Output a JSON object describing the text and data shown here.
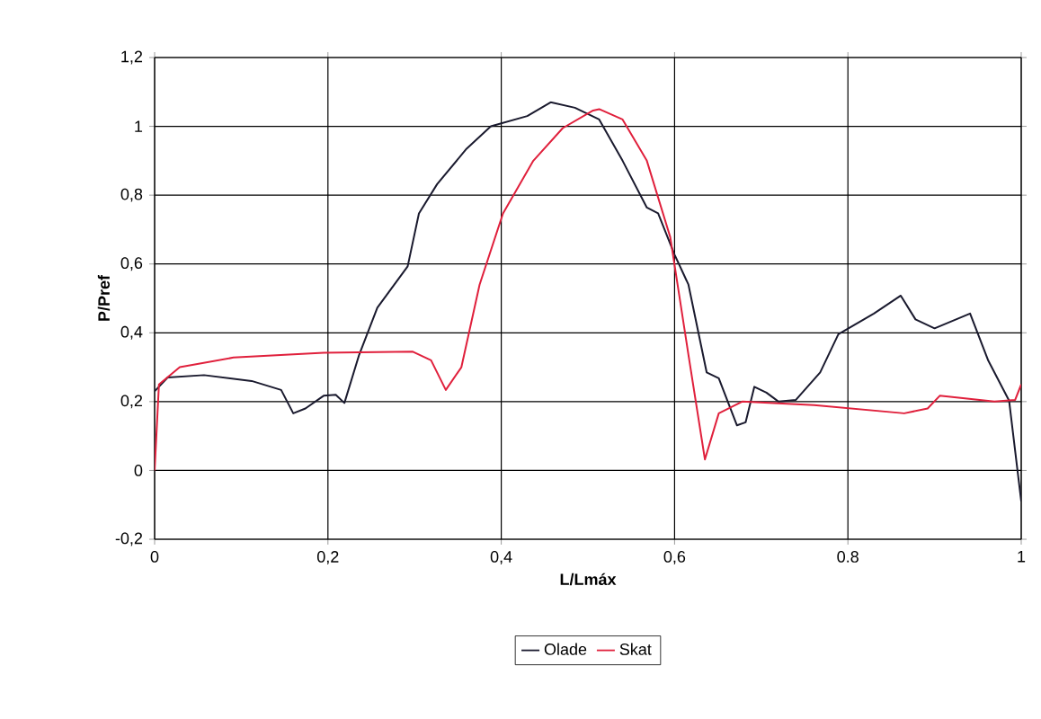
{
  "chart_data": {
    "type": "line",
    "xlabel": "L/Lmáx",
    "ylabel": "P/Pref",
    "xlim": [
      0,
      1
    ],
    "ylim": [
      -0.2,
      1.2
    ],
    "xticks": [
      0,
      {
        "value": 0.2,
        "label": "0,2"
      },
      {
        "value": 0.4,
        "label": "0,4"
      },
      {
        "value": 0.6,
        "label": "0,6"
      },
      0.8,
      1
    ],
    "yticks": [
      {
        "value": -0.2,
        "label": "-0,2"
      },
      0,
      {
        "value": 0.2,
        "label": "0,2"
      },
      {
        "value": 0.4,
        "label": "0,4"
      },
      {
        "value": 0.6,
        "label": "0,6"
      },
      {
        "value": 0.8,
        "label": "0,8"
      },
      1,
      {
        "value": 1.2,
        "label": "1,2"
      }
    ],
    "grid": true,
    "legend": "bottom",
    "marker": "none",
    "line_style": "solid",
    "series": [
      {
        "name": "Olade",
        "color": "#1a1a2e",
        "x": [
          0,
          0.015,
          0.057,
          0.112,
          0.146,
          0.16,
          0.174,
          0.195,
          0.209,
          0.219,
          0.236,
          0.257,
          0.292,
          0.305,
          0.326,
          0.36,
          0.388,
          0.43,
          0.457,
          0.485,
          0.513,
          0.54,
          0.568,
          0.581,
          0.6,
          0.616,
          0.637,
          0.651,
          0.672,
          0.682,
          0.692,
          0.706,
          0.72,
          0.74,
          0.768,
          0.789,
          0.83,
          0.861,
          0.878,
          0.9,
          0.941,
          0.962,
          0.986,
          1.0
        ],
        "values": [
          0.23,
          0.27,
          0.277,
          0.26,
          0.234,
          0.166,
          0.18,
          0.217,
          0.22,
          0.196,
          0.336,
          0.473,
          0.593,
          0.747,
          0.832,
          0.935,
          1.0,
          1.03,
          1.07,
          1.054,
          1.02,
          0.9,
          0.764,
          0.747,
          0.627,
          0.54,
          0.285,
          0.268,
          0.131,
          0.14,
          0.243,
          0.226,
          0.2,
          0.205,
          0.285,
          0.396,
          0.456,
          0.508,
          0.439,
          0.413,
          0.456,
          0.319,
          0.203,
          -0.09
        ]
      },
      {
        "name": "Skat",
        "color": "#e0203c",
        "x": [
          0,
          0.005,
          0.029,
          0.091,
          0.195,
          0.298,
          0.319,
          0.336,
          0.354,
          0.375,
          0.402,
          0.437,
          0.471,
          0.506,
          0.513,
          0.54,
          0.568,
          0.595,
          0.616,
          0.635,
          0.651,
          0.678,
          0.761,
          0.865,
          0.892,
          0.906,
          0.969,
          0.993,
          1.0
        ],
        "values": [
          0.0,
          0.25,
          0.3,
          0.328,
          0.342,
          0.345,
          0.32,
          0.234,
          0.3,
          0.54,
          0.747,
          0.9,
          0.995,
          1.046,
          1.05,
          1.02,
          0.9,
          0.678,
          0.336,
          0.032,
          0.166,
          0.2,
          0.19,
          0.166,
          0.18,
          0.217,
          0.2,
          0.205,
          0.25
        ]
      }
    ]
  }
}
